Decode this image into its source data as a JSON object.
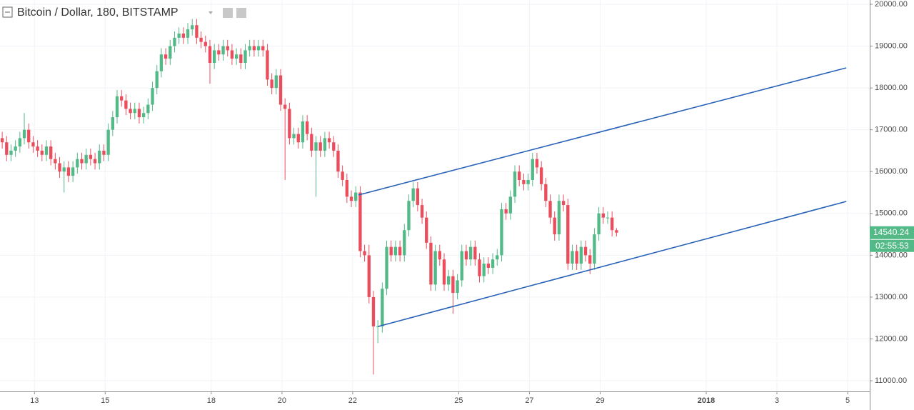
{
  "chart_data": {
    "type": "candlestick",
    "title": "Bitcoin / Dollar, 180, BITSTAMP",
    "xlim": [
      -0.5,
      196.3
    ],
    "ylim": [
      10745,
      20102
    ],
    "xticks": [
      {
        "value": 7.3,
        "label": "13"
      },
      {
        "value": 23.3,
        "label": "15"
      },
      {
        "value": 47.3,
        "label": "18"
      },
      {
        "value": 63.3,
        "label": "20"
      },
      {
        "value": 79.3,
        "label": "22"
      },
      {
        "value": 103.3,
        "label": "25"
      },
      {
        "value": 119.3,
        "label": "27"
      },
      {
        "value": 135.3,
        "label": "29"
      },
      {
        "value": 159.3,
        "label": "2018"
      },
      {
        "value": 175.3,
        "label": "3"
      },
      {
        "value": 191.3,
        "label": "5"
      }
    ],
    "yticks": [
      {
        "value": 11000,
        "label": "11000.00"
      },
      {
        "value": 12000,
        "label": "12000.00"
      },
      {
        "value": 13000,
        "label": "13000.00"
      },
      {
        "value": 14000,
        "label": "14000.00"
      },
      {
        "value": 15000,
        "label": "15000.00"
      },
      {
        "value": 16000,
        "label": "16000.00"
      },
      {
        "value": 17000,
        "label": "17000.00"
      },
      {
        "value": 18000,
        "label": "18000.00"
      },
      {
        "value": 19000,
        "label": "19000.00"
      },
      {
        "value": 20000,
        "label": "20000.00"
      }
    ],
    "grid": true,
    "up_color": "#53b987",
    "down_color": "#eb4d5c",
    "open": [
      16800,
      16700,
      16400,
      16500,
      16600,
      16800,
      17000,
      16700,
      16600,
      16500,
      16400,
      16600,
      16300,
      16200,
      16000,
      16100,
      15900,
      16100,
      16300,
      16200,
      16400,
      16300,
      16200,
      16500,
      16400,
      17000,
      17300,
      17800,
      17700,
      17500,
      17400,
      17500,
      17300,
      17400,
      17600,
      18000,
      18400,
      18800,
      18700,
      19000,
      19200,
      19300,
      19200,
      19400,
      19500,
      19200,
      19100,
      19000,
      18600,
      18900,
      18800,
      19000,
      18900,
      18700,
      18800,
      18600,
      18900,
      19000,
      18900,
      19000,
      18900,
      18200,
      18000,
      18300,
      17600,
      17500,
      16800,
      16900,
      16700,
      17200,
      16900,
      16500,
      16700,
      16500,
      16800,
      16700,
      16500,
      16000,
      15800,
      15400,
      15300,
      15500,
      14100,
      14000,
      13000,
      12300,
      12300,
      13200,
      14200,
      14000,
      14200,
      14000,
      14600,
      15300,
      15600,
      15200,
      14900,
      14300,
      13300,
      14100,
      13900,
      13300,
      13500,
      13100,
      13400,
      14100,
      13900,
      14200,
      13900,
      13500,
      13800,
      13700,
      13900,
      14000,
      15100,
      15000,
      15400,
      16000,
      15800,
      15700,
      15800,
      16300,
      16100,
      15700,
      15300,
      14900,
      14500,
      15300,
      15200,
      13800,
      14100,
      13800,
      14200,
      14000,
      13800,
      14500,
      15000,
      14900,
      14900,
      14600
    ],
    "high": [
      16950,
      16850,
      16650,
      16750,
      16950,
      17400,
      17150,
      16850,
      16750,
      16650,
      16750,
      16750,
      16450,
      16350,
      16250,
      16250,
      16250,
      16450,
      16450,
      16550,
      16550,
      16450,
      16650,
      16650,
      17150,
      17450,
      17950,
      17950,
      17850,
      17650,
      17650,
      17650,
      17550,
      17750,
      18150,
      18550,
      18950,
      18950,
      19150,
      19350,
      19450,
      19450,
      19550,
      19650,
      19650,
      19350,
      19250,
      19150,
      19050,
      19050,
      19150,
      19150,
      19050,
      18950,
      18950,
      19050,
      19150,
      19150,
      19150,
      19150,
      19050,
      18350,
      18450,
      18450,
      17750,
      17650,
      17050,
      17050,
      17350,
      17350,
      17050,
      16850,
      16850,
      16950,
      16950,
      16850,
      16650,
      16150,
      15950,
      15550,
      15650,
      15650,
      14250,
      14250,
      13150,
      12450,
      13350,
      14350,
      14350,
      14350,
      14350,
      14750,
      15450,
      15750,
      15750,
      15350,
      15050,
      14450,
      14250,
      14250,
      14050,
      13650,
      13650,
      13550,
      14250,
      14250,
      14350,
      14350,
      14050,
      13950,
      13950,
      14050,
      14150,
      15250,
      15250,
      15550,
      16150,
      16150,
      15950,
      15950,
      16450,
      16450,
      16250,
      15850,
      15450,
      15050,
      15450,
      15450,
      15350,
      14250,
      14250,
      14350,
      14350,
      14150,
      14650,
      15150,
      15150,
      15050,
      15050,
      14650
    ],
    "low": [
      16550,
      16250,
      16250,
      16350,
      16450,
      16650,
      16550,
      16450,
      16350,
      16250,
      16250,
      16150,
      16050,
      15850,
      15500,
      15750,
      15750,
      15950,
      16050,
      16050,
      16150,
      16050,
      16050,
      16250,
      16250,
      16850,
      17150,
      17550,
      17350,
      17250,
      17250,
      17150,
      17150,
      17250,
      17450,
      17850,
      18250,
      18550,
      18550,
      18850,
      19050,
      19050,
      19050,
      19250,
      19050,
      18950,
      18850,
      18100,
      18450,
      18650,
      18650,
      18750,
      18550,
      18550,
      18450,
      18450,
      18750,
      18750,
      18750,
      18750,
      18050,
      17850,
      17850,
      17450,
      15800,
      16650,
      16650,
      16550,
      16550,
      16750,
      16350,
      15400,
      16350,
      16350,
      16550,
      16350,
      15850,
      15650,
      15250,
      15150,
      15150,
      13950,
      13850,
      12850,
      11150,
      11900,
      12150,
      13050,
      13850,
      13850,
      13850,
      13850,
      14450,
      15150,
      15050,
      14750,
      14150,
      13150,
      13150,
      13750,
      13150,
      13150,
      12600,
      12950,
      13250,
      13750,
      13750,
      13750,
      13350,
      13350,
      13550,
      13550,
      13750,
      13850,
      14850,
      14850,
      15250,
      15650,
      15550,
      15550,
      15650,
      15950,
      15550,
      15150,
      14750,
      14350,
      14350,
      15050,
      13650,
      13650,
      13650,
      13650,
      13850,
      13550,
      13650,
      14350,
      14750,
      14750,
      14450,
      14450
    ],
    "close": [
      16700,
      16400,
      16500,
      16600,
      16800,
      17000,
      16700,
      16600,
      16500,
      16400,
      16600,
      16300,
      16200,
      16000,
      16100,
      15900,
      16100,
      16300,
      16200,
      16400,
      16300,
      16200,
      16500,
      16400,
      17000,
      17300,
      17800,
      17700,
      17500,
      17400,
      17500,
      17300,
      17400,
      17600,
      18000,
      18400,
      18800,
      18700,
      19000,
      19200,
      19300,
      19200,
      19400,
      19500,
      19200,
      19100,
      19000,
      18600,
      18900,
      18800,
      19000,
      18900,
      18700,
      18800,
      18600,
      18900,
      19000,
      18900,
      19000,
      18900,
      18200,
      18000,
      18300,
      17600,
      17500,
      16800,
      16900,
      16700,
      17200,
      16900,
      16500,
      16700,
      16500,
      16800,
      16700,
      16500,
      16000,
      15800,
      15400,
      15300,
      15500,
      14100,
      14000,
      13000,
      12300,
      12300,
      13200,
      14200,
      14000,
      14200,
      14000,
      14600,
      15300,
      15600,
      15200,
      14900,
      14300,
      13300,
      14100,
      13900,
      13300,
      13500,
      13100,
      13400,
      14100,
      13900,
      14200,
      13900,
      13500,
      13800,
      13700,
      13900,
      14000,
      15100,
      15000,
      15400,
      16000,
      15800,
      15700,
      15800,
      16300,
      16100,
      15700,
      15300,
      14900,
      14500,
      15300,
      15200,
      13800,
      14100,
      13800,
      14200,
      14000,
      13800,
      14500,
      15000,
      14900,
      14900,
      14600,
      14540.24
    ],
    "countdown": "02:55:53",
    "trend_lines": [
      {
        "color": "#2962b8",
        "x": [
          80.6,
          191
        ],
        "y": [
          15441,
          18480
        ]
      },
      {
        "color": "#2962b8",
        "x": [
          85.1,
          191
        ],
        "y": [
          12299,
          15287
        ]
      }
    ]
  }
}
